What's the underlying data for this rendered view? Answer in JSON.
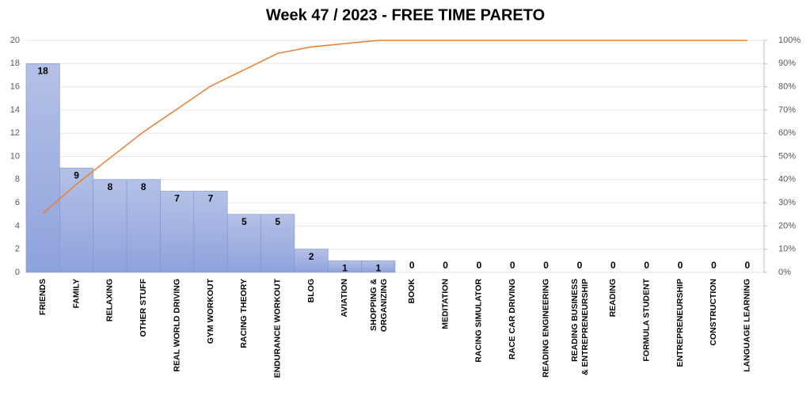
{
  "chart_data": {
    "type": "pareto",
    "title": "Week 47 / 2023 - FREE TIME PARETO",
    "categories": [
      "FRIENDS",
      "FAMILY",
      "RELAXING",
      "OTHER STUFF",
      "REAL WORLD DRIVING",
      "GYM WORKOUT",
      "RACING THEORY",
      "ENDURANCE WORKOUT",
      "BLOG",
      "AVIATION",
      "SHOPPING & ORGANIZING",
      "BOOK",
      "MEDITATION",
      "RACING SIMULATOR",
      "RACE CAR DRIVING",
      "READING ENGINEERING",
      "READING BUSINESS & ENTREPRENEURSHIP",
      "READING",
      "FORMULA STUDENT",
      "ENTREPRENEURSHIP",
      "CONSTRUCTION",
      "LANGUAGE LEARNING"
    ],
    "series": [
      {
        "type": "bar",
        "color": "#8ea2dc",
        "values": [
          18,
          9,
          8,
          8,
          7,
          7,
          5,
          5,
          2,
          1,
          1,
          0,
          0,
          0,
          0,
          0,
          0,
          0,
          0,
          0,
          0,
          0
        ]
      },
      {
        "type": "line",
        "color": "#ed7d31",
        "axis": "y2",
        "values": [
          25.4,
          38.0,
          49.3,
          60.6,
          70.4,
          80.3,
          87.3,
          94.4,
          97.2,
          98.6,
          100,
          100,
          100,
          100,
          100,
          100,
          100,
          100,
          100,
          100,
          100,
          100
        ]
      }
    ],
    "ylim": [
      0,
      20
    ],
    "yticks": [
      0,
      2,
      4,
      6,
      8,
      10,
      12,
      14,
      16,
      18,
      20
    ],
    "y2lim": [
      0,
      100
    ],
    "y2ticks": [
      {
        "value": 0,
        "label": "0%"
      },
      {
        "value": 10,
        "label": "10%"
      },
      {
        "value": 20,
        "label": "20%"
      },
      {
        "value": 30,
        "label": "30%"
      },
      {
        "value": 40,
        "label": "40%"
      },
      {
        "value": 50,
        "label": "50%"
      },
      {
        "value": 60,
        "label": "60%"
      },
      {
        "value": 70,
        "label": "70%"
      },
      {
        "value": 80,
        "label": "80%"
      },
      {
        "value": 90,
        "label": "90%"
      },
      {
        "value": 100,
        "label": "100%"
      }
    ]
  }
}
